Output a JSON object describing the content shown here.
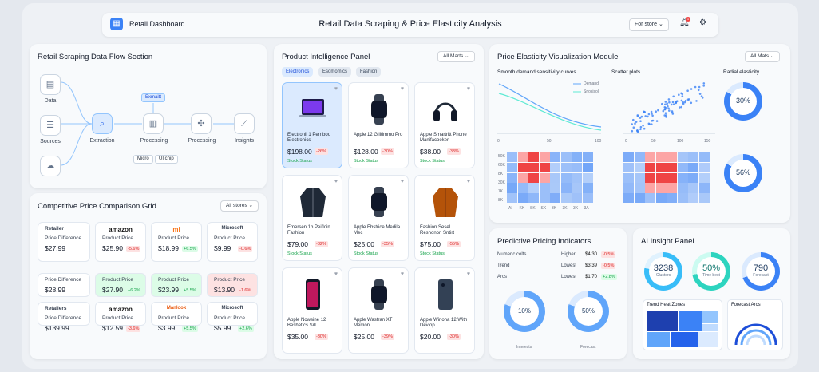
{
  "header": {
    "app_title": "Retail Dashboard",
    "title": "Retail Data Scraping & Price Elasticity Analysis",
    "store_dropdown": "For store",
    "bell_count": "1"
  },
  "flow": {
    "title": "Retail Scraping Data Flow Section",
    "data": "Data",
    "sources": "Sources",
    "extraction": "Extraction",
    "processing1": "Processing",
    "processing2": "Processing",
    "insights": "Insights",
    "badge": "Exmaitt",
    "chip1": "Micro",
    "chip2": "UI chip"
  },
  "grid": {
    "title": "Competitive Price Comparison Grid",
    "dropdown": "All stores",
    "rows": [
      {
        "label": "Retailer",
        "sub": "Price Difference",
        "val": "$27.99",
        "cells": [
          {
            "brand": "amazon",
            "price": "$25.90",
            "delta": "-5.6%",
            "up": false
          },
          {
            "brand": "mi",
            "price": "$18.99",
            "delta": "+6.5%",
            "up": true
          },
          {
            "brand": "Microsoft",
            "price": "$9.99",
            "delta": "-0.6%",
            "up": false
          }
        ]
      },
      {
        "label": "",
        "sub": "Price Difference",
        "val": "$28.99",
        "cells": [
          {
            "brand": "",
            "price": "$27.90",
            "delta": "+6.2%",
            "up": true
          },
          {
            "brand": "",
            "price": "$23.99",
            "delta": "+5.5%",
            "up": true
          },
          {
            "brand": "",
            "price": "$13.90",
            "delta": "-1.6%",
            "up": false
          }
        ]
      },
      {
        "label": "Retailers",
        "sub": "Price Difference",
        "val": "$139.99",
        "cells": [
          {
            "brand": "amazon",
            "price": "$12.59",
            "delta": "-3.6%",
            "up": false
          },
          {
            "brand": "Manlook",
            "price": "$3.99",
            "delta": "+5.5%",
            "up": true
          },
          {
            "brand": "Microsoft",
            "price": "$5.99",
            "delta": "+2.6%",
            "up": true
          }
        ]
      }
    ],
    "cell_label": "Product Price"
  },
  "products": {
    "title": "Product Intelligence Panel",
    "dropdown": "All Marts",
    "tabs": [
      "Electronics",
      "Esomomics",
      "Fashion"
    ],
    "items": [
      {
        "name": "Electronil 1 Pernboo Electronics",
        "price": "$198.00",
        "delta": "-26%",
        "status": "Stock Status",
        "kind": "laptop"
      },
      {
        "name": "Apple 12 Gilitimmo Pro",
        "price": "$128.00",
        "delta": "-30%",
        "status": "Stock Status",
        "kind": "watch"
      },
      {
        "name": "Apple Smartritt Phone Manifacooker",
        "price": "$38.00",
        "delta": "-33%",
        "status": "Stock Status",
        "kind": "headphones"
      },
      {
        "name": "Emersen 1b Peifloin Fashion",
        "price": "$79.00",
        "delta": "-82%",
        "status": "Stock Status",
        "kind": "jacket"
      },
      {
        "name": "Apple Ebstrice Medila Mec",
        "price": "$25.00",
        "delta": "-35%",
        "status": "Stock Status",
        "kind": "watch"
      },
      {
        "name": "Fashion Sesel Resnonon Sntirt",
        "price": "$75.00",
        "delta": "-55%",
        "status": "Stock Status",
        "kind": "jacket2"
      },
      {
        "name": "Apple Nowsine 12 Beshetics Sill",
        "price": "$35.00",
        "delta": "-30%",
        "status": "",
        "kind": "phone"
      },
      {
        "name": "Apple Wastran XT Memon",
        "price": "$25.00",
        "delta": "-39%",
        "status": "",
        "kind": "watch"
      },
      {
        "name": "Apple Winona 12 With Devlop",
        "price": "$20.00",
        "delta": "-30%",
        "status": "",
        "kind": "phone2"
      }
    ]
  },
  "elasticity": {
    "title": "Price Elasticity Visualization Module",
    "dropdown": "All Mats",
    "curves_label": "Smooth demand sensitivity curves",
    "scatter_label": "Scatter plots",
    "radial_label": "Radial elasticity",
    "legend1": "Demand",
    "legend2": "Snosisol",
    "radial1": "30%",
    "radial2": "56%",
    "curve_x": [
      "0",
      "50",
      "100"
    ],
    "scatter_x": [
      "0",
      "50",
      "100",
      "150"
    ],
    "heat_y": [
      "50K",
      "60K",
      "8K",
      "30K",
      "7K",
      "8K"
    ],
    "heat_x": [
      "AI",
      "KK",
      "SK",
      "SK",
      "3K",
      "3K",
      "3K",
      "3A"
    ]
  },
  "pricing": {
    "title": "Predictive Pricing Indicators",
    "rows": [
      {
        "a": "Numeric colts",
        "b": "Higher",
        "c": "$4.30",
        "d": "-0.5%",
        "up": false
      },
      {
        "a": "Trend",
        "b": "Lowest",
        "c": "$3.39",
        "d": "-0.5%",
        "up": false
      },
      {
        "a": "Arcs",
        "b": "Lowest",
        "c": "$1.70",
        "d": "+2.8%",
        "up": true
      }
    ],
    "gauge1": "10%",
    "gauge1_label": "Interests",
    "gauge2": "50%",
    "gauge2_label": "Forecast"
  },
  "ai": {
    "title": "AI Insight Panel",
    "k1": "3238",
    "k1_label": "Clusters",
    "k2": "50%",
    "k2_label": "Time best",
    "k3": "790",
    "k3_label": "Forecast",
    "heat_title": "Trend Heat Zones",
    "arcs_title": "Forecast Arcs"
  }
}
